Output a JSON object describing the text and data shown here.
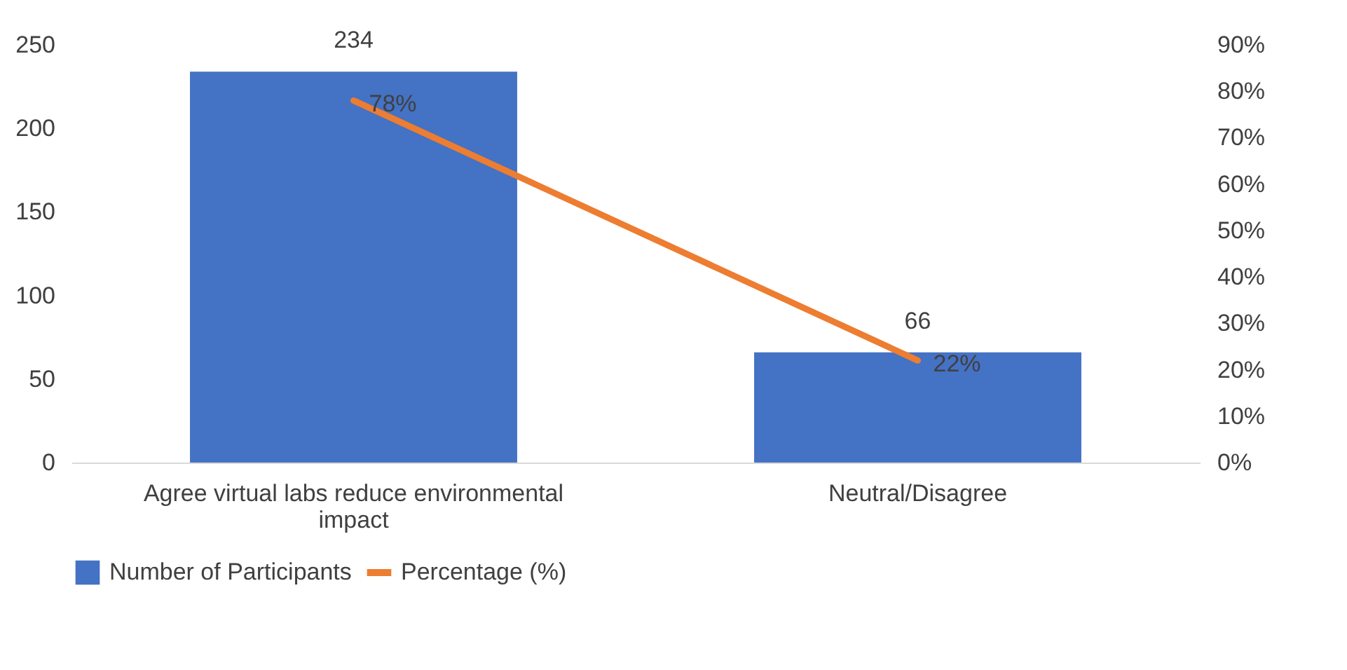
{
  "chart_data": {
    "type": "bar",
    "categories": [
      "Agree virtual labs reduce environmental impact",
      "Neutral/Disagree"
    ],
    "series": [
      {
        "name": "Number of Participants",
        "type": "bar",
        "color": "#4472c4",
        "values": [
          234,
          66
        ],
        "value_labels": [
          "234",
          "66"
        ]
      },
      {
        "name": "Percentage (%)",
        "type": "line",
        "axis": "y2",
        "color": "#ed7d31",
        "values": [
          78,
          22
        ],
        "value_labels": [
          "78%",
          "22%"
        ]
      }
    ],
    "ylim": [
      0,
      250
    ],
    "yticks": [
      0,
      50,
      100,
      150,
      200,
      250
    ],
    "y2lim": [
      0,
      90
    ],
    "y2ticks": [
      {
        "value": 0,
        "label": "0%"
      },
      {
        "value": 10,
        "label": "10%"
      },
      {
        "value": 20,
        "label": "20%"
      },
      {
        "value": 30,
        "label": "30%"
      },
      {
        "value": 40,
        "label": "40%"
      },
      {
        "value": 50,
        "label": "50%"
      },
      {
        "value": 60,
        "label": "60%"
      },
      {
        "value": 70,
        "label": "70%"
      },
      {
        "value": 80,
        "label": "80%"
      },
      {
        "value": 90,
        "label": "90%"
      }
    ],
    "grid": false,
    "legend": "bottom"
  }
}
